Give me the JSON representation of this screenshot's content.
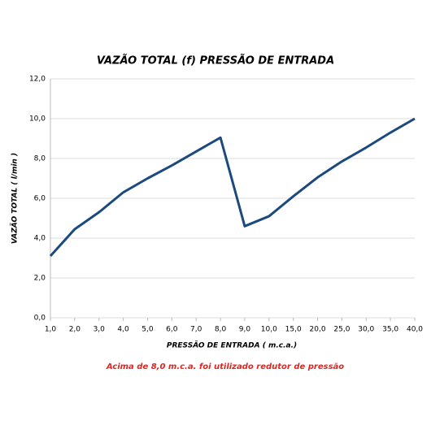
{
  "chart_data": {
    "type": "line",
    "title": "VAZÃO TOTAL (f) PRESSÃO DE ENTRADA",
    "x_label": "PRESSÃO DE ENTRADA ( m.c.a.)",
    "y_label": "VAZÃO TOTAL ( l/min )",
    "annotation": "Acima de 8,0 m.c.a. foi utilizado redutor de pressão",
    "categories": [
      "1,0",
      "2,0",
      "3,0",
      "4,0",
      "5,0",
      "6,0",
      "7,0",
      "8,0",
      "9,0",
      "10,0",
      "15,0",
      "20,0",
      "25,0",
      "30,0",
      "35,0",
      "40,0"
    ],
    "values": [
      3.1,
      4.45,
      5.3,
      6.3,
      7.0,
      7.65,
      8.35,
      9.05,
      4.6,
      5.1,
      6.1,
      7.05,
      7.85,
      8.55,
      9.3,
      10.0
    ],
    "color": "#1c4a7e",
    "ylim": [
      0,
      12
    ],
    "yticks": [
      {
        "value": 0,
        "label": "0,0"
      },
      {
        "value": 2,
        "label": "2,0"
      },
      {
        "value": 4,
        "label": "4,0"
      },
      {
        "value": 6,
        "label": "6,0"
      },
      {
        "value": 8,
        "label": "8,0"
      },
      {
        "value": 10,
        "label": "10,0"
      },
      {
        "value": 12,
        "label": "12,0"
      }
    ],
    "grid": true
  }
}
